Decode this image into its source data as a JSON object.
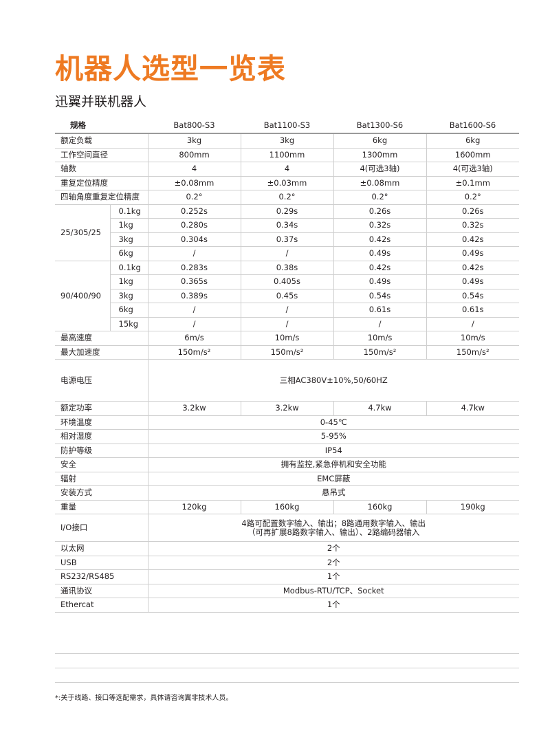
{
  "header": {
    "title": "机器人选型一览表",
    "subtitle": "迅翼并联机器人"
  },
  "table": {
    "columns": [
      "规格",
      "Bat800-S3",
      "Bat1100-S3",
      "Bat1300-S6",
      "Bat1600-S6"
    ],
    "rows": [
      {
        "label": "额定负载",
        "cells": [
          "3kg",
          "3kg",
          "6kg",
          "6kg"
        ]
      },
      {
        "label": "工作空间直径",
        "cells": [
          "800mm",
          "1100mm",
          "1300mm",
          "1600mm"
        ]
      },
      {
        "label": "轴数",
        "cells": [
          "4",
          "4",
          "4(可选3轴)",
          "4(可选3轴)"
        ]
      },
      {
        "label": "重复定位精度",
        "cells": [
          "±0.08mm",
          "±0.03mm",
          "±0.08mm",
          "±0.1mm"
        ]
      },
      {
        "label": "四轴角度重复定位精度",
        "cells": [
          "0.2°",
          "0.2°",
          "0.2°",
          "0.2°"
        ]
      },
      {
        "label": "25/305/25",
        "subrows": [
          {
            "label": "0.1kg",
            "cells": [
              "0.252s",
              "0.29s",
              "0.26s",
              "0.26s"
            ]
          },
          {
            "label": "1kg",
            "cells": [
              "0.280s",
              "0.34s",
              "0.32s",
              "0.32s"
            ]
          },
          {
            "label": "3kg",
            "cells": [
              "0.304s",
              "0.37s",
              "0.42s",
              "0.42s"
            ]
          },
          {
            "label": "6kg",
            "cells": [
              "/",
              "/",
              "0.49s",
              "0.49s"
            ]
          }
        ]
      },
      {
        "label": "90/400/90",
        "subrows": [
          {
            "label": "0.1kg",
            "cells": [
              "0.283s",
              "0.38s",
              "0.42s",
              "0.42s"
            ]
          },
          {
            "label": "1kg",
            "cells": [
              "0.365s",
              "0.405s",
              "0.49s",
              "0.49s"
            ]
          },
          {
            "label": "3kg",
            "cells": [
              "0.389s",
              "0.45s",
              "0.54s",
              "0.54s"
            ]
          },
          {
            "label": "6kg",
            "cells": [
              "/",
              "/",
              "0.61s",
              "0.61s"
            ]
          },
          {
            "label": "15kg",
            "cells": [
              "/",
              "/",
              "/",
              "/"
            ]
          }
        ]
      },
      {
        "label": "最高速度",
        "cells": [
          "6m/s",
          "10m/s",
          "10m/s",
          "10m/s"
        ]
      },
      {
        "label": "最大加速度",
        "cells": [
          "150m/s²",
          "150m/s²",
          "150m/s²",
          "150m/s²"
        ]
      },
      {
        "label": "电源电压",
        "cells": [
          "三相AC380V±10%,50/60HZ"
        ]
      },
      {
        "label": "额定功率",
        "cells": [
          "3.2kw",
          "3.2kw",
          "4.7kw",
          "4.7kw"
        ]
      },
      {
        "label": "环境温度",
        "cells": [
          "0-45℃"
        ]
      },
      {
        "label": "相对湿度",
        "cells": [
          "5-95%"
        ]
      },
      {
        "label": "防护等级",
        "cells": [
          "IP54"
        ]
      },
      {
        "label": "安全",
        "cells": [
          "拥有监控,紧急停机和安全功能"
        ]
      },
      {
        "label": "辐射",
        "cells": [
          "EMC屏蔽"
        ]
      },
      {
        "label": "安装方式",
        "cells": [
          "悬吊式"
        ]
      },
      {
        "label": "重量",
        "cells": [
          "120kg",
          "160kg",
          "160kg",
          "190kg"
        ]
      },
      {
        "label": "I/O接口",
        "cells": [
          [
            "4路可配置数字输入、输出；8路通用数字输入、输出",
            "（可再扩展8路数字输入、输出）、2路编码器输入"
          ]
        ]
      },
      {
        "label": "以太网",
        "cells": [
          "2个"
        ]
      },
      {
        "label": "USB",
        "cells": [
          "2个"
        ]
      },
      {
        "label": "RS232/RS485",
        "cells": [
          "1个"
        ]
      },
      {
        "label": "通讯协议",
        "cells": [
          "Modbus-RTU/TCP、Socket"
        ]
      },
      {
        "label": "Ethercat",
        "cells": [
          "1个"
        ]
      }
    ]
  },
  "footnote": "*:关于线路、接口等选配需求，具体请咨询翼非技术人员。"
}
